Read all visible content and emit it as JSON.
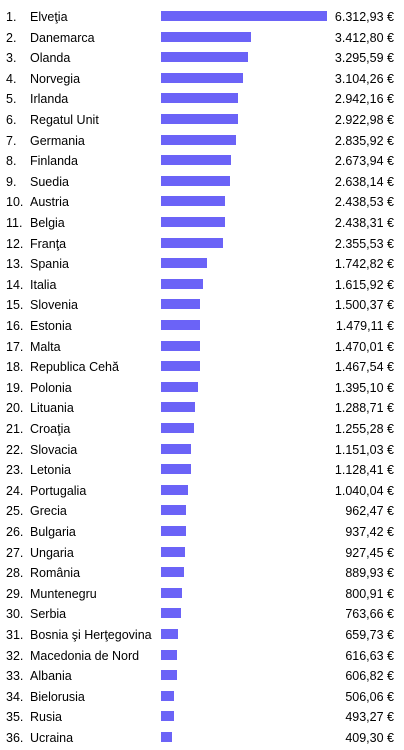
{
  "chart_data": {
    "type": "bar",
    "orientation": "horizontal",
    "bar_color": "#6b63f7",
    "max_value": 6312.93,
    "items": [
      {
        "rank": "1.",
        "label": "Elveţia",
        "value": 6312.93,
        "value_label": "6.312,93 €"
      },
      {
        "rank": "2.",
        "label": "Danemarca",
        "value": 3412.8,
        "value_label": "3.412,80 €"
      },
      {
        "rank": "3.",
        "label": "Olanda",
        "value": 3295.59,
        "value_label": "3.295,59 €"
      },
      {
        "rank": "4.",
        "label": "Norvegia",
        "value": 3104.26,
        "value_label": "3.104,26 €"
      },
      {
        "rank": "5.",
        "label": "Irlanda",
        "value": 2942.16,
        "value_label": "2.942,16 €"
      },
      {
        "rank": "6.",
        "label": "Regatul Unit",
        "value": 2922.98,
        "value_label": "2.922,98 €"
      },
      {
        "rank": "7.",
        "label": "Germania",
        "value": 2835.92,
        "value_label": "2.835,92 €"
      },
      {
        "rank": "8.",
        "label": "Finlanda",
        "value": 2673.94,
        "value_label": "2.673,94 €"
      },
      {
        "rank": "9.",
        "label": "Suedia",
        "value": 2638.14,
        "value_label": "2.638,14 €"
      },
      {
        "rank": "10.",
        "label": "Austria",
        "value": 2438.53,
        "value_label": "2.438,53 €"
      },
      {
        "rank": "11.",
        "label": "Belgia",
        "value": 2438.31,
        "value_label": "2.438,31 €"
      },
      {
        "rank": "12.",
        "label": "Franţa",
        "value": 2355.53,
        "value_label": "2.355,53 €"
      },
      {
        "rank": "13.",
        "label": "Spania",
        "value": 1742.82,
        "value_label": "1.742,82 €"
      },
      {
        "rank": "14.",
        "label": "Italia",
        "value": 1615.92,
        "value_label": "1.615,92 €"
      },
      {
        "rank": "15.",
        "label": "Slovenia",
        "value": 1500.37,
        "value_label": "1.500,37 €"
      },
      {
        "rank": "16.",
        "label": "Estonia",
        "value": 1479.11,
        "value_label": "1.479,11 €"
      },
      {
        "rank": "17.",
        "label": "Malta",
        "value": 1470.01,
        "value_label": "1.470,01 €"
      },
      {
        "rank": "18.",
        "label": "Republica Cehă",
        "value": 1467.54,
        "value_label": "1.467,54 €"
      },
      {
        "rank": "19.",
        "label": "Polonia",
        "value": 1395.1,
        "value_label": "1.395,10 €"
      },
      {
        "rank": "20.",
        "label": "Lituania",
        "value": 1288.71,
        "value_label": "1.288,71 €"
      },
      {
        "rank": "21.",
        "label": "Croaţia",
        "value": 1255.28,
        "value_label": "1.255,28 €"
      },
      {
        "rank": "22.",
        "label": "Slovacia",
        "value": 1151.03,
        "value_label": "1.151,03 €"
      },
      {
        "rank": "23.",
        "label": "Letonia",
        "value": 1128.41,
        "value_label": "1.128,41 €"
      },
      {
        "rank": "24.",
        "label": "Portugalia",
        "value": 1040.04,
        "value_label": "1.040,04 €"
      },
      {
        "rank": "25.",
        "label": "Grecia",
        "value": 962.47,
        "value_label": "962,47 €"
      },
      {
        "rank": "26.",
        "label": "Bulgaria",
        "value": 937.42,
        "value_label": "937,42 €"
      },
      {
        "rank": "27.",
        "label": "Ungaria",
        "value": 927.45,
        "value_label": "927,45 €"
      },
      {
        "rank": "28.",
        "label": "România",
        "value": 889.93,
        "value_label": "889,93 €"
      },
      {
        "rank": "29.",
        "label": "Muntenegru",
        "value": 800.91,
        "value_label": "800,91 €"
      },
      {
        "rank": "30.",
        "label": "Serbia",
        "value": 763.66,
        "value_label": "763,66 €"
      },
      {
        "rank": "31.",
        "label": "Bosnia şi Herţegovina",
        "value": 659.73,
        "value_label": "659,73 €"
      },
      {
        "rank": "32.",
        "label": "Macedonia de Nord",
        "value": 616.63,
        "value_label": "616,63 €"
      },
      {
        "rank": "33.",
        "label": "Albania",
        "value": 606.82,
        "value_label": "606,82 €"
      },
      {
        "rank": "34.",
        "label": "Bielorusia",
        "value": 506.06,
        "value_label": "506,06 €"
      },
      {
        "rank": "35.",
        "label": "Rusia",
        "value": 493.27,
        "value_label": "493,27 €"
      },
      {
        "rank": "36.",
        "label": "Ucraina",
        "value": 409.3,
        "value_label": "409,30 €"
      }
    ]
  }
}
